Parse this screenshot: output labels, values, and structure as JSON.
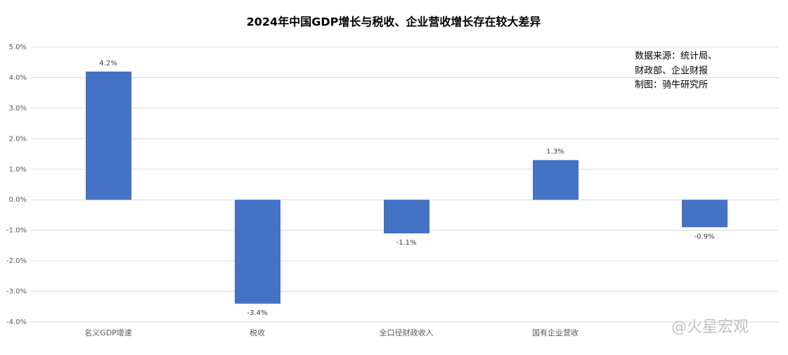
{
  "chart_data": {
    "type": "bar",
    "title": "2024年中国GDP增长与税收、企业营收增长存在较大差异",
    "categories": [
      "名义GDP增速",
      "税收",
      "全口径财政收入",
      "国有企业营收",
      null
    ],
    "values": [
      4.2,
      -3.4,
      -1.1,
      1.3,
      -0.9
    ],
    "value_labels": [
      "4.2%",
      "-3.4%",
      "-1.1%",
      "1.3%",
      "-0.9%"
    ],
    "color": "#4472c4",
    "ylim": [
      -4,
      5
    ],
    "yticks": [
      {
        "value": -4,
        "label": "-4.0%"
      },
      {
        "value": -3,
        "label": "-3.0%"
      },
      {
        "value": -2,
        "label": "-2.0%"
      },
      {
        "value": -1,
        "label": "-1.0%"
      },
      {
        "value": 0,
        "label": "0.0%"
      },
      {
        "value": 1,
        "label": "1.0%"
      },
      {
        "value": 2,
        "label": "2.0%"
      },
      {
        "value": 3,
        "label": "3.0%"
      },
      {
        "value": 4,
        "label": "4.0%"
      },
      {
        "value": 5,
        "label": "5.0%"
      }
    ],
    "grid": true,
    "annotations": [
      "数据来源：统计局、",
      "财政部、企业财报",
      "制图：骑牛研究所"
    ],
    "watermark": "@火星宏观"
  }
}
